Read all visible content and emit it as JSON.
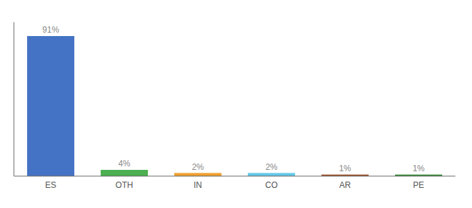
{
  "chart_data": {
    "type": "bar",
    "categories": [
      "ES",
      "OTH",
      "IN",
      "CO",
      "AR",
      "PE"
    ],
    "values": [
      91,
      4,
      2,
      2,
      1,
      1
    ],
    "value_labels": [
      "91%",
      "4%",
      "2%",
      "2%",
      "1%",
      "1%"
    ],
    "colors": [
      "#4472c4",
      "#4caf50",
      "#f0a030",
      "#64c8e8",
      "#a0522d",
      "#3a8c3a"
    ],
    "ylim": [
      0,
      100
    ],
    "data_labels": true,
    "tick_labels": "x",
    "grid": false
  }
}
